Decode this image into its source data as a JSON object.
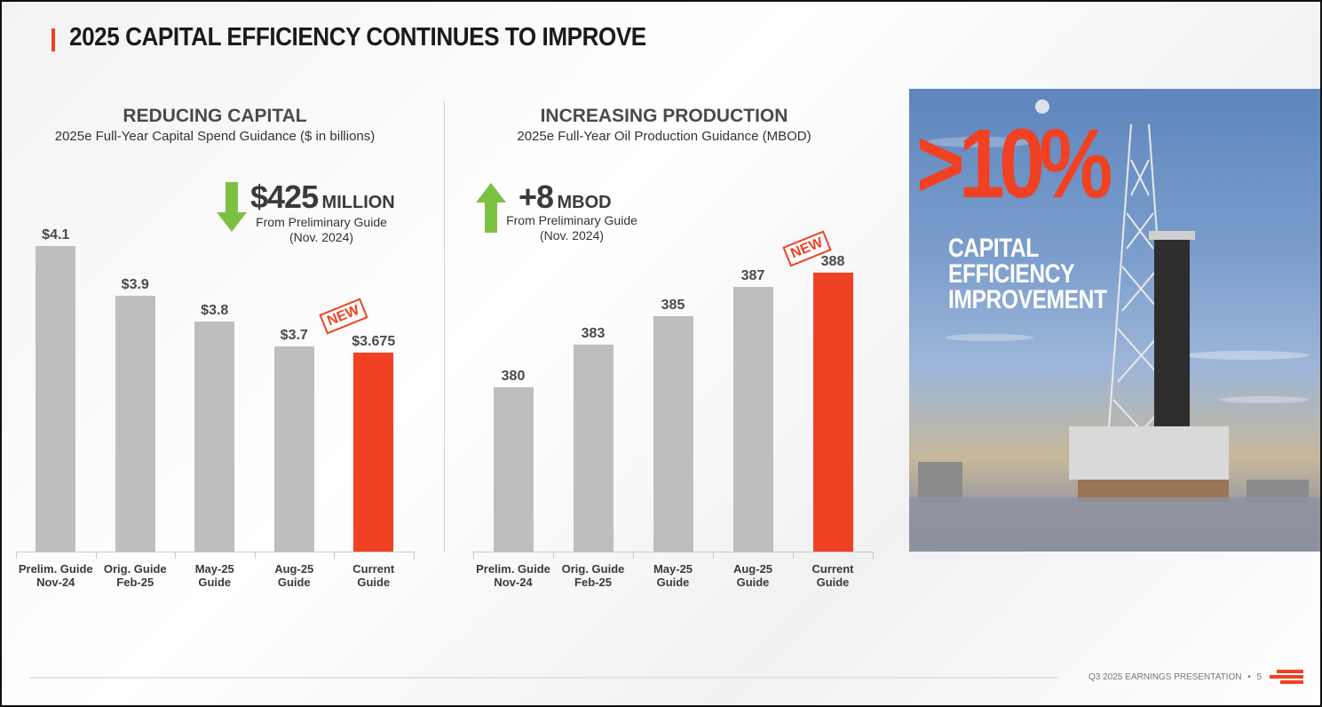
{
  "title": "2025 CAPITAL EFFICIENCY CONTINUES TO IMPROVE",
  "colors": {
    "accent": "#f04123",
    "bar_gray": "#bdbebe",
    "arrow_green": "#7dc142",
    "text_dark": "#3a3a3a"
  },
  "left_section": {
    "heading": "REDUCING CAPITAL",
    "subheading": "2025e Full-Year Capital Spend Guidance ($ in billions)",
    "callout_value": "$425",
    "callout_unit": "MILLION",
    "callout_sub_1": "From Preliminary Guide",
    "callout_sub_2": "(Nov. 2024)",
    "arrow_direction": "down",
    "new_stamp": "NEW"
  },
  "right_section": {
    "heading": "INCREASING PRODUCTION",
    "subheading": "2025e Full-Year Oil Production Guidance (MBOD)",
    "callout_value": "+8",
    "callout_unit": "MBOD",
    "callout_sub_1": "From Preliminary Guide",
    "callout_sub_2": "(Nov. 2024)",
    "arrow_direction": "up",
    "new_stamp": "NEW"
  },
  "chart_data": [
    {
      "type": "bar",
      "title": "REDUCING CAPITAL",
      "subtitle": "2025e Full-Year Capital Spend Guidance ($ in billions)",
      "categories": [
        "Prelim. Guide\nNov-24",
        "Orig. Guide\nFeb-25",
        "May-25\nGuide",
        "Aug-25\nGuide",
        "Current\nGuide"
      ],
      "values": [
        4.1,
        3.9,
        3.8,
        3.7,
        3.675
      ],
      "value_labels": [
        "$4.1",
        "$3.9",
        "$3.8",
        "$3.7",
        "$3.675"
      ],
      "highlight_index": 4,
      "ylim": [
        2.88,
        4.1
      ]
    },
    {
      "type": "bar",
      "title": "INCREASING PRODUCTION",
      "subtitle": "2025e Full-Year Oil Production Guidance (MBOD)",
      "categories": [
        "Prelim. Guide\nNov-24",
        "Orig. Guide\nFeb-25",
        "May-25\nGuide",
        "Aug-25\nGuide",
        "Current\nGuide"
      ],
      "values": [
        380,
        383,
        385,
        387,
        388
      ],
      "value_labels": [
        "380",
        "383",
        "385",
        "387",
        "388"
      ],
      "highlight_index": 4,
      "ylim": [
        368.6,
        388
      ]
    }
  ],
  "photo": {
    "big_text": ">10%",
    "caption": "CAPITAL\nEFFICIENCY\nIMPROVEMENT",
    "description_icon": "drilling-rig-photo"
  },
  "footer": {
    "text": "Q3 2025 EARNINGS PRESENTATION",
    "separator": "•",
    "page_number": "5"
  }
}
